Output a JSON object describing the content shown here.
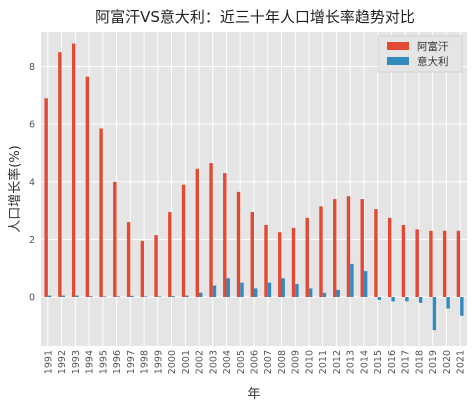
{
  "chart_data": {
    "type": "bar",
    "title": "阿富汗VS意大利：近三十年人口增长率趋势对比",
    "xlabel": "年",
    "ylabel": "人口增长率(%)",
    "ylim": [
      -1.7,
      9.2
    ],
    "yticks": [
      0,
      2,
      4,
      6,
      8
    ],
    "grid": true,
    "legend_position": "top-right",
    "categories": [
      "1991",
      "1992",
      "1993",
      "1994",
      "1995",
      "1996",
      "1997",
      "1998",
      "1999",
      "2000",
      "2001",
      "2002",
      "2003",
      "2004",
      "2005",
      "2006",
      "2007",
      "2008",
      "2009",
      "2010",
      "2011",
      "2012",
      "2013",
      "2014",
      "2015",
      "2016",
      "2017",
      "2018",
      "2019",
      "2020",
      "2021"
    ],
    "series": [
      {
        "name": "阿富汗",
        "color": "#E24A33",
        "values": [
          6.9,
          8.5,
          8.8,
          7.65,
          5.85,
          4.0,
          2.6,
          1.95,
          2.15,
          2.95,
          3.9,
          4.45,
          4.65,
          4.3,
          3.65,
          2.95,
          2.5,
          2.25,
          2.4,
          2.75,
          3.15,
          3.4,
          3.5,
          3.4,
          3.05,
          2.75,
          2.5,
          2.35,
          2.3,
          2.3,
          2.3
        ]
      },
      {
        "name": "意大利",
        "color": "#348ABD",
        "values": [
          0.05,
          0.05,
          0.05,
          0.03,
          0.02,
          0.02,
          0.04,
          0.02,
          0.02,
          0.03,
          0.05,
          0.15,
          0.4,
          0.65,
          0.5,
          0.3,
          0.5,
          0.65,
          0.45,
          0.3,
          0.15,
          0.25,
          1.15,
          0.9,
          -0.1,
          -0.15,
          -0.15,
          -0.2,
          -1.15,
          -0.4,
          -0.65
        ]
      }
    ]
  }
}
